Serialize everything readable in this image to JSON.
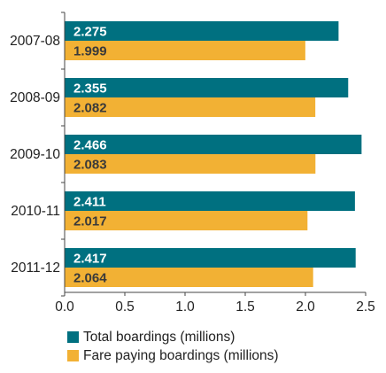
{
  "chart_data": {
    "type": "bar",
    "orientation": "horizontal",
    "categories": [
      "2007-08",
      "2008-09",
      "2009-10",
      "2010-11",
      "2011-12"
    ],
    "series": [
      {
        "name": "Total boardings (millions)",
        "color": "#007080",
        "label_color": "#ffffff",
        "values": [
          2.275,
          2.355,
          2.466,
          2.411,
          2.417
        ],
        "labels": [
          "2.275",
          "2.355",
          "2.466",
          "2.411",
          "2.417"
        ]
      },
      {
        "name": "Fare paying boardings (millions)",
        "color": "#f2b134",
        "label_color": "#3a3a3a",
        "values": [
          1.999,
          2.082,
          2.083,
          2.017,
          2.064
        ],
        "labels": [
          "1.999",
          "2.082",
          "2.083",
          "2.017",
          "2.064"
        ]
      }
    ],
    "xlim": [
      0,
      2.5
    ],
    "ticks": [
      0,
      0.5,
      1.0,
      1.5,
      2.0,
      2.5
    ],
    "tick_labels": [
      "0.0",
      "0.5",
      "1.0",
      "1.5",
      "2.0",
      "2.5"
    ],
    "grid": false,
    "legend_position": "bottom-left"
  }
}
